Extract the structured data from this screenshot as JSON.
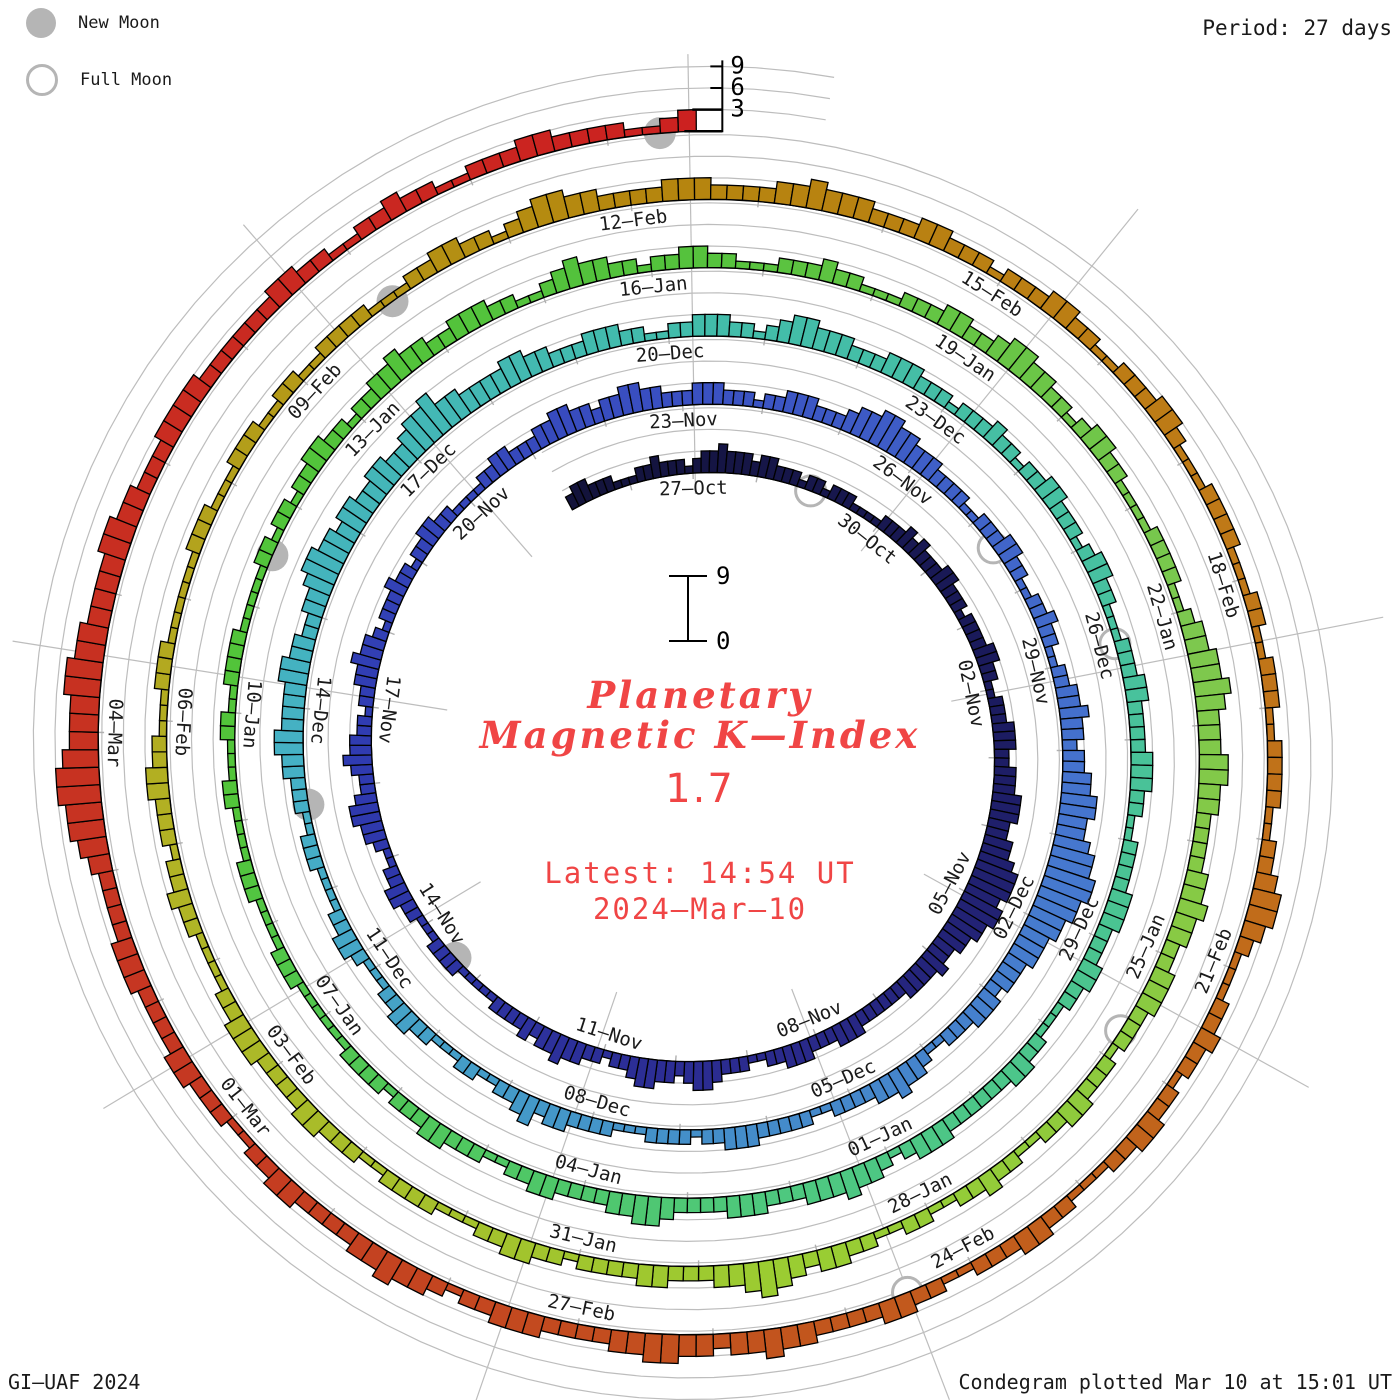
{
  "title": {
    "line1": "Planetary",
    "line2": "Magnetic K—Index",
    "current_value": "1.7",
    "latest_time": "Latest: 14:54 UT",
    "latest_date": "2024—Mar—10",
    "text_color": "#f04545"
  },
  "legend": {
    "new_moon_label": "New Moon",
    "full_moon_label": "Full Moon",
    "moon_color": "#b5b5b5"
  },
  "period_label": "Period: 27 days",
  "footer": {
    "left": "GI—UAF 2024",
    "right": "Condegram plotted Mar 10 at 15:01 UT"
  },
  "scale": {
    "outer_ticks": [
      3,
      6,
      9
    ],
    "inner_top": "9",
    "inner_bottom": "0"
  },
  "chart_data": {
    "type": "bar",
    "layout": "polar-spiral",
    "title": "Planetary Magnetic K-Index condegram",
    "start_date": "2023-10-25",
    "end_datetime": "2024-03-10T15:00Z",
    "days_per_revolution": 27,
    "bars_per_day": 8,
    "k_scale": {
      "min": 0,
      "max": 9,
      "tick_step": 3
    },
    "direction": "clockwise",
    "grid_on": true,
    "date_label_interval_days": 3,
    "first_label_day_offset": 2,
    "date_labels": [
      "27—Oct",
      "30—Oct",
      "02—Nov",
      "05—Nov",
      "08—Nov",
      "11—Nov",
      "14—Nov",
      "17—Nov",
      "20—Nov",
      "23—Nov",
      "26—Nov",
      "29—Nov",
      "02—Dec",
      "05—Dec",
      "08—Dec",
      "11—Dec",
      "14—Dec",
      "17—Dec",
      "20—Dec",
      "23—Dec",
      "26—Dec",
      "29—Dec",
      "01—Jan",
      "04—Jan",
      "07—Jan",
      "10—Jan",
      "13—Jan",
      "16—Jan",
      "19—Jan",
      "22—Jan",
      "25—Jan",
      "28—Jan",
      "31—Jan",
      "03—Feb",
      "06—Feb",
      "09—Feb",
      "12—Feb",
      "15—Feb",
      "18—Feb",
      "21—Feb",
      "24—Feb",
      "27—Feb",
      "01—Mar",
      "04—Mar"
    ],
    "k_values_per_day": [
      "23322211",
      "12232221",
      "23343332",
      "33222122",
      "12221111",
      "22232322",
      "23322212",
      "22233221",
      "12223332",
      "23334443",
      "34456665",
      "66554433",
      "43333222",
      "22233322",
      "23332211",
      "22234432",
      "33443221",
      "22334332",
      "32222111",
      "11222211",
      "12233221",
      "12334432",
      "23433221",
      "22334332",
      "12223221",
      "22332211",
      "11223322",
      "23344332",
      "33443322",
      "23332221",
      "22333222",
      "34455443",
      "33222211",
      "22233221",
      "12232211",
      "22334332",
      "33445544",
      "56677665",
      "54443332",
      "33322211",
      "23343322",
      "22112222",
      "23332212",
      "22211122",
      "22332432",
      "21122111",
      "22332211",
      "12332211",
      "11222112",
      "22334433",
      "33443322",
      "33455443",
      "44334433",
      "45564433",
      "33443322",
      "23332211",
      "22333221",
      "23443332",
      "22333222",
      "12223221",
      "22332221",
      "23322111",
      "22233222",
      "23332211",
      "22223332",
      "22332211",
      "12233222",
      "22233321",
      "23343332",
      "22333222",
      "23443322",
      "22332211",
      "22233222",
      "12222111",
      "11122211",
      "11222111",
      "12211122",
      "11222211",
      "11122122",
      "12233221",
      "22334332",
      "23332211",
      "23433221",
      "22332211",
      "12223221",
      "11222332",
      "23443322",
      "12332211",
      "11222211",
      "23344543",
      "33443322",
      "22334332",
      "23332221",
      "22233221",
      "12232211",
      "22112233",
      "23454332",
      "22332222",
      "12233221",
      "11222211",
      "22233222",
      "23332211",
      "11223221",
      "22233221",
      "11222111",
      "11122211",
      "12221122",
      "11222211",
      "12233221",
      "23443322",
      "22333222",
      "23343332",
      "22332221",
      "22233221",
      "12223321",
      "11222211",
      "12211222",
      "11222211",
      "22344321",
      "11223221",
      "22332211",
      "12233222",
      "11223322",
      "22334332",
      "33443322",
      "22333221",
      "23343322",
      "22332211",
      "22233222",
      "23332222",
      "34556654",
      "44554433",
      "33443322",
      "23333222",
      "22233221",
      "12232211",
      "22233222",
      "21123"
    ],
    "color_anchors": [
      [
        0,
        "#13133a"
      ],
      [
        8,
        "#1b1b5e"
      ],
      [
        15,
        "#2b2b8f"
      ],
      [
        22,
        "#2f3ab0"
      ],
      [
        29,
        "#3a50c2"
      ],
      [
        37,
        "#4677cf"
      ],
      [
        43,
        "#4490c9"
      ],
      [
        49,
        "#45b0c6"
      ],
      [
        56,
        "#42bcab"
      ],
      [
        62,
        "#48c19e"
      ],
      [
        69,
        "#4ec87f"
      ],
      [
        76,
        "#52c53a"
      ],
      [
        83,
        "#53c23c"
      ],
      [
        89,
        "#7cc84f"
      ],
      [
        96,
        "#9acd32"
      ],
      [
        103,
        "#b2b224"
      ],
      [
        110,
        "#b5860e"
      ],
      [
        116,
        "#c07818"
      ],
      [
        123,
        "#c2571d"
      ],
      [
        128,
        "#c53922"
      ],
      [
        138,
        "#cc2020"
      ]
    ],
    "moons": {
      "new_moon_days": [
        19.4,
        48.95,
        78.5,
        107.95,
        137.37
      ],
      "full_moon_days": [
        3.85,
        33.39,
        62.02,
        92.75,
        122.52
      ]
    },
    "grid_color": "#bdbdbd",
    "bar_outline_color": "#000000"
  }
}
